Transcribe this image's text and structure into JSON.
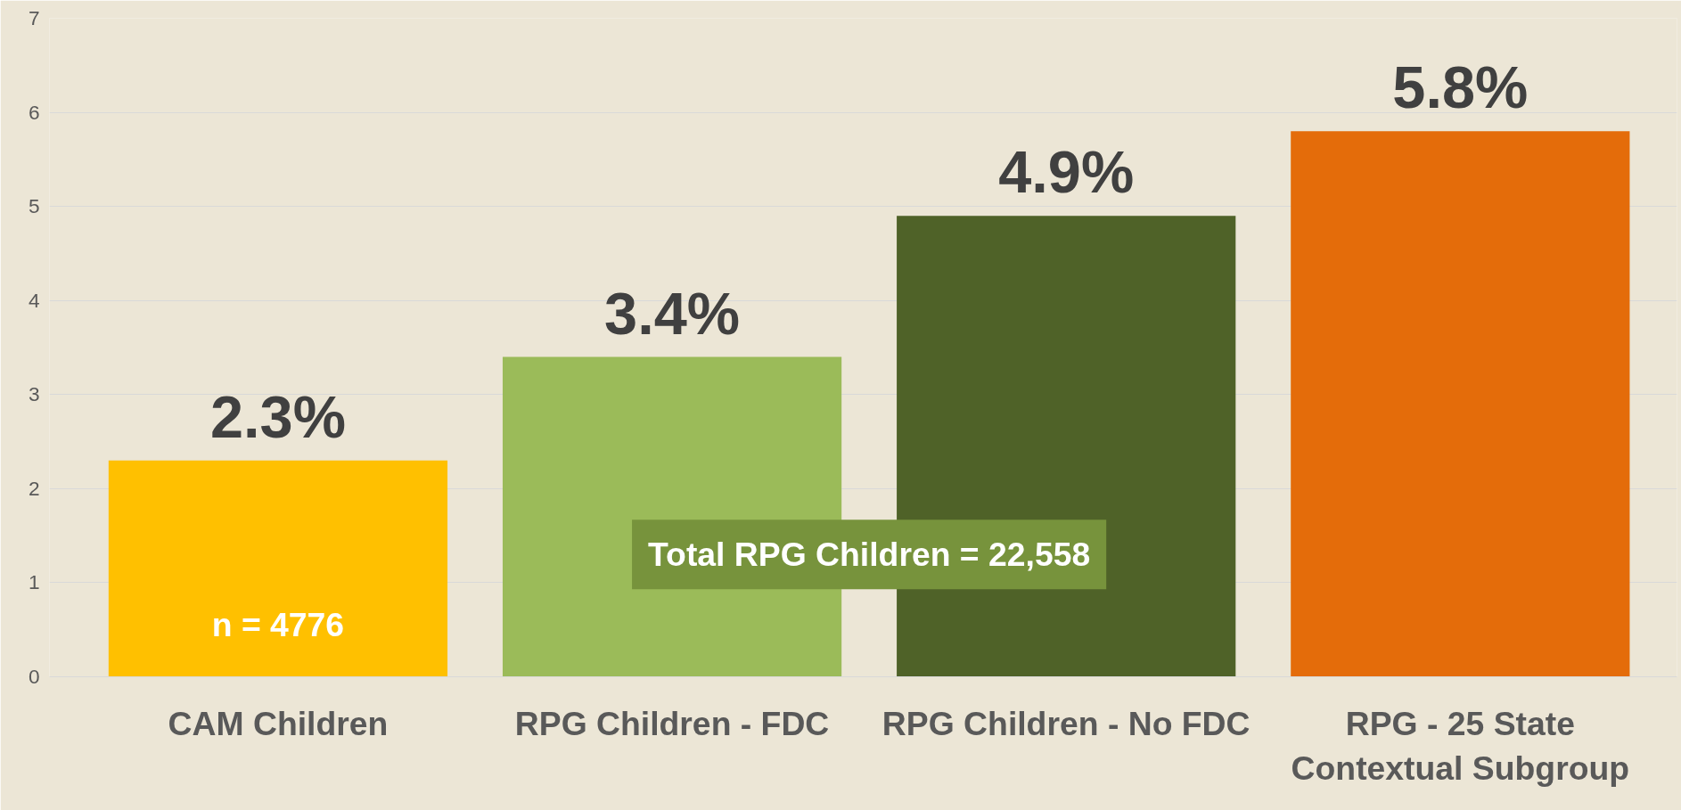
{
  "chart_data": {
    "type": "bar",
    "categories": [
      "CAM Children",
      "RPG Children - FDC",
      "RPG Children - No FDC",
      "RPG - 25 State\nContextual Subgroup"
    ],
    "values": [
      2.3,
      3.4,
      4.9,
      5.8
    ],
    "colors": [
      "#ffc000",
      "#9bbb59",
      "#4f6228",
      "#e46c0a"
    ],
    "value_labels": [
      "2.3%",
      "3.4%",
      "4.9%",
      "5.8%"
    ],
    "ylim": [
      0,
      7
    ],
    "yticks": [
      0,
      1,
      2,
      3,
      4,
      5,
      6,
      7
    ],
    "grid": "y",
    "annotations": [
      "n = 4776",
      "Total RPG Children = 22,558"
    ]
  }
}
